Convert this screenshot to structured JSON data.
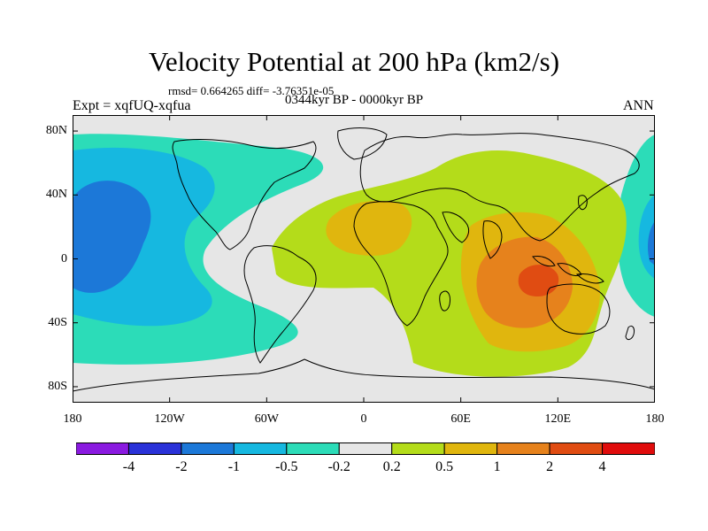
{
  "title": "Velocity Potential at 200 hPa (km2/s)",
  "stats_line": "rmsd= 0.664265 diff= -3.76351e-05",
  "expt_label": "Expt = xqfUQ-xqfua",
  "period_label": "0344kyr BP - 0000kyr BP",
  "season_label": "ANN",
  "x_ticks": [
    {
      "lon": -180,
      "label": "180"
    },
    {
      "lon": -120,
      "label": "120W"
    },
    {
      "lon": -60,
      "label": "60W"
    },
    {
      "lon": 0,
      "label": "0"
    },
    {
      "lon": 60,
      "label": "60E"
    },
    {
      "lon": 120,
      "label": "120E"
    },
    {
      "lon": 180,
      "label": "180"
    }
  ],
  "y_ticks": [
    {
      "lat": 80,
      "label": "80N"
    },
    {
      "lat": 40,
      "label": "40N"
    },
    {
      "lat": 0,
      "label": "0"
    },
    {
      "lat": -40,
      "label": "40S"
    },
    {
      "lat": -80,
      "label": "80S"
    }
  ],
  "colorbar": {
    "colors": [
      "#8a1ae0",
      "#2a32d8",
      "#1c78d8",
      "#16b8e0",
      "#2cdcb8",
      "#e6e6e6",
      "#b4dc1a",
      "#e0b60e",
      "#e6821c",
      "#e04c12",
      "#e00c0c"
    ],
    "labels": [
      "-4",
      "-2",
      "-1",
      "-0.5",
      "-0.2",
      "0.2",
      "0.5",
      "1",
      "2",
      "4"
    ]
  },
  "colors": {
    "neutral": "#e6e6e6",
    "neg_weak": "#2cdcb8",
    "neg_mid": "#16b8e0",
    "neg_strong": "#1c78d8",
    "pos_weak": "#b4dc1a",
    "pos_mid": "#e0b60e",
    "pos_strong": "#e6821c",
    "pos_max": "#e04c12"
  }
}
